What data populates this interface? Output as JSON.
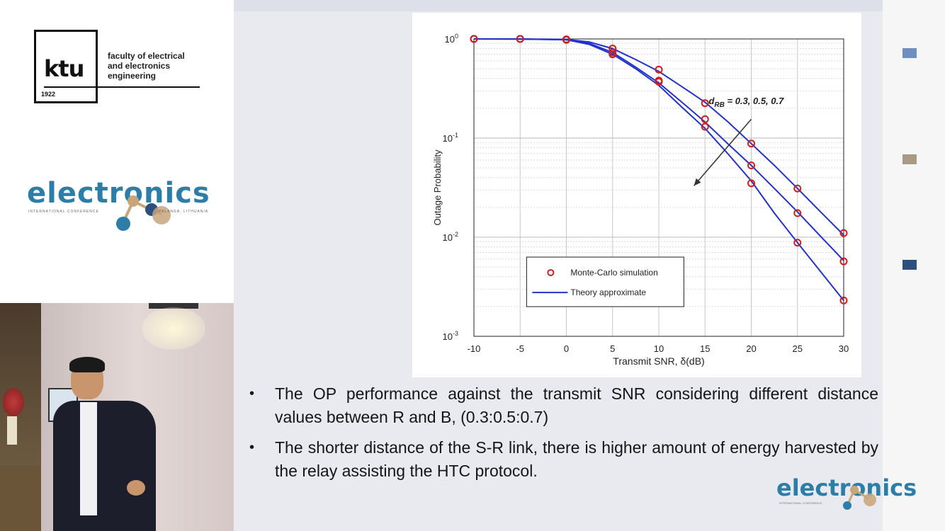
{
  "branding": {
    "ktu_logo_text": "ktu",
    "ktu_year": "1922",
    "faculty_text": "faculty of electrical\nand electronics\nengineering",
    "conference_name": "electronics",
    "conference_sub_left": "INTERNATIONAL CONFERENCE",
    "conference_sub_right": "PALANGA, LITHUANIA",
    "footer_logo_text": "electronics",
    "footer_logo_sub": "INTERNATIONAL CONFERENCE"
  },
  "colors": {
    "accent_blue": "#2c7ea8",
    "curve_blue": "#2233cc",
    "marker_red": "#cc1f1f",
    "square_1": "#6f8fc2",
    "square_2": "#a89a85",
    "square_3": "#2c4f7e"
  },
  "chart_data": {
    "type": "line",
    "xlabel": "Transmit SNR, δ(dB)",
    "ylabel": "Outage Probability",
    "xlim": [
      -10,
      30
    ],
    "ylim": [
      0.001,
      1
    ],
    "yscale": "log",
    "x_ticks": [
      -10,
      -5,
      0,
      5,
      10,
      15,
      20,
      25,
      30
    ],
    "x_tick_labels": [
      "-10",
      "-5",
      "0",
      "5",
      "10",
      "15",
      "20",
      "25",
      "30"
    ],
    "y_ticks": [
      0.001,
      0.01,
      0.1,
      1
    ],
    "y_tick_labels": [
      {
        "base": "10",
        "exp": "-3"
      },
      {
        "base": "10",
        "exp": "-2"
      },
      {
        "base": "10",
        "exp": "-1"
      },
      {
        "base": "10",
        "exp": "0"
      }
    ],
    "grid": true,
    "legend": {
      "position": "bottom-left",
      "entries": [
        "Monte-Carlo simulation",
        "Theory approximate"
      ]
    },
    "annotation": {
      "label_main": "d",
      "label_sub": "RB",
      "label_rest": " = 0.3, 0.5, 0.7"
    },
    "series": [
      {
        "name": "d_RB = 0.7",
        "curve_x": [
          -10,
          -5,
          0,
          2.5,
          5,
          7.5,
          10,
          12.5,
          15,
          17.5,
          20,
          22.5,
          25,
          27.5,
          30
        ],
        "curve_y": [
          1.0,
          0.999,
          0.99,
          0.93,
          0.8,
          0.62,
          0.47,
          0.33,
          0.23,
          0.145,
          0.088,
          0.053,
          0.031,
          0.018,
          0.0105
        ],
        "markers_x": [
          -10,
          -5,
          0,
          5,
          10,
          15,
          20,
          25,
          30
        ],
        "markers_y": [
          1.0,
          1.0,
          0.99,
          0.8,
          0.49,
          0.225,
          0.088,
          0.031,
          0.011
        ]
      },
      {
        "name": "d_RB = 0.5",
        "curve_x": [
          -10,
          -5,
          0,
          2.5,
          5,
          7.5,
          10,
          12.5,
          15,
          17.5,
          20,
          22.5,
          25,
          27.5,
          30
        ],
        "curve_y": [
          1.0,
          0.999,
          0.985,
          0.9,
          0.73,
          0.52,
          0.36,
          0.23,
          0.145,
          0.087,
          0.053,
          0.031,
          0.018,
          0.0102,
          0.0058
        ],
        "markers_x": [
          -10,
          -5,
          0,
          5,
          10,
          15,
          20,
          25,
          30
        ],
        "markers_y": [
          1.0,
          1.0,
          0.985,
          0.73,
          0.38,
          0.155,
          0.053,
          0.0175,
          0.0057
        ]
      },
      {
        "name": "d_RB = 0.3",
        "curve_x": [
          -10,
          -5,
          0,
          2.5,
          5,
          7.5,
          10,
          12.5,
          15,
          17.5,
          20,
          22.5,
          25,
          27.5,
          30
        ],
        "curve_y": [
          1.0,
          0.999,
          0.98,
          0.88,
          0.7,
          0.5,
          0.34,
          0.205,
          0.125,
          0.069,
          0.037,
          0.0175,
          0.0088,
          0.0045,
          0.0023
        ],
        "markers_x": [
          -10,
          -5,
          0,
          5,
          10,
          15,
          20,
          25,
          30
        ],
        "markers_y": [
          1.0,
          1.0,
          0.98,
          0.7,
          0.37,
          0.13,
          0.035,
          0.0088,
          0.0023
        ]
      }
    ]
  },
  "bullets": [
    "The OP performance against the transmit SNR considering different distance values between R and B, (0.3:0.5:0.7)",
    "The shorter distance of the S-R link, there is higher amount of energy harvested by the relay assisting the HTC protocol."
  ]
}
